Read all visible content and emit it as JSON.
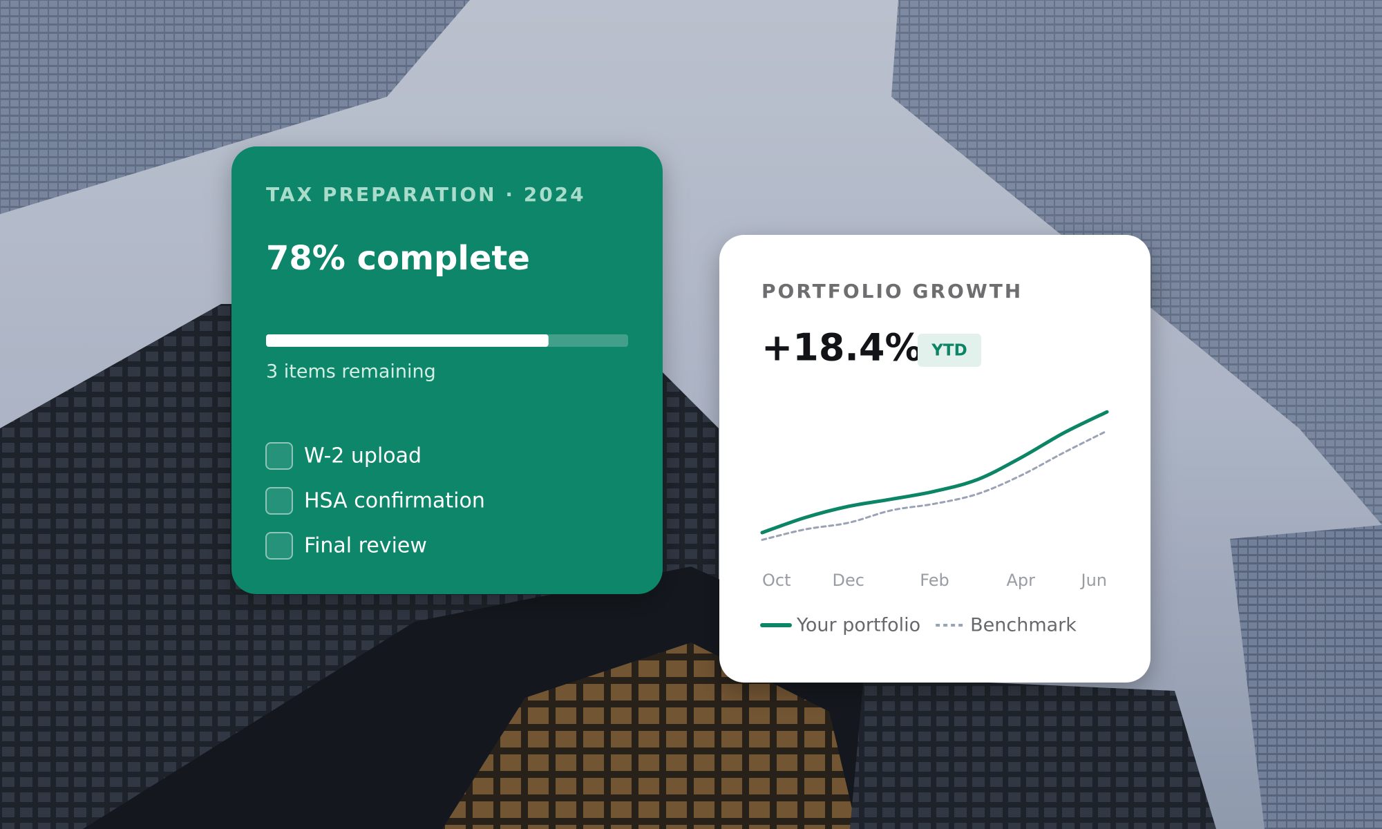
{
  "tax_card": {
    "eyebrow": "TAX PREPARATION · 2024",
    "progress": {
      "value": 78,
      "label": "78% complete"
    },
    "remaining": "3 items remaining",
    "checklist": [
      "W-2 upload",
      "HSA confirmation",
      "Final review"
    ]
  },
  "chart_data": {
    "type": "line",
    "title": "PORTFOLIO GROWTH",
    "headline": "+18.4%",
    "badge": "YTD",
    "categories": [
      "Oct",
      null,
      "Dec",
      null,
      "Feb",
      null,
      "Apr",
      null,
      "Jun"
    ],
    "series": [
      {
        "name": "Your portfolio",
        "color": "#0b8565",
        "style": "solid",
        "values": [
          0,
          2.3,
          4.0,
          5.1,
          6.3,
          8.1,
          11.4,
          15.2,
          18.4
        ]
      },
      {
        "name": "Benchmark",
        "color": "#9aa2b6",
        "style": "dashed",
        "values": [
          -1.1,
          0.5,
          1.5,
          3.4,
          4.4,
          5.9,
          8.7,
          12.2,
          15.5
        ]
      }
    ],
    "ylim": [
      -2,
      20
    ]
  }
}
